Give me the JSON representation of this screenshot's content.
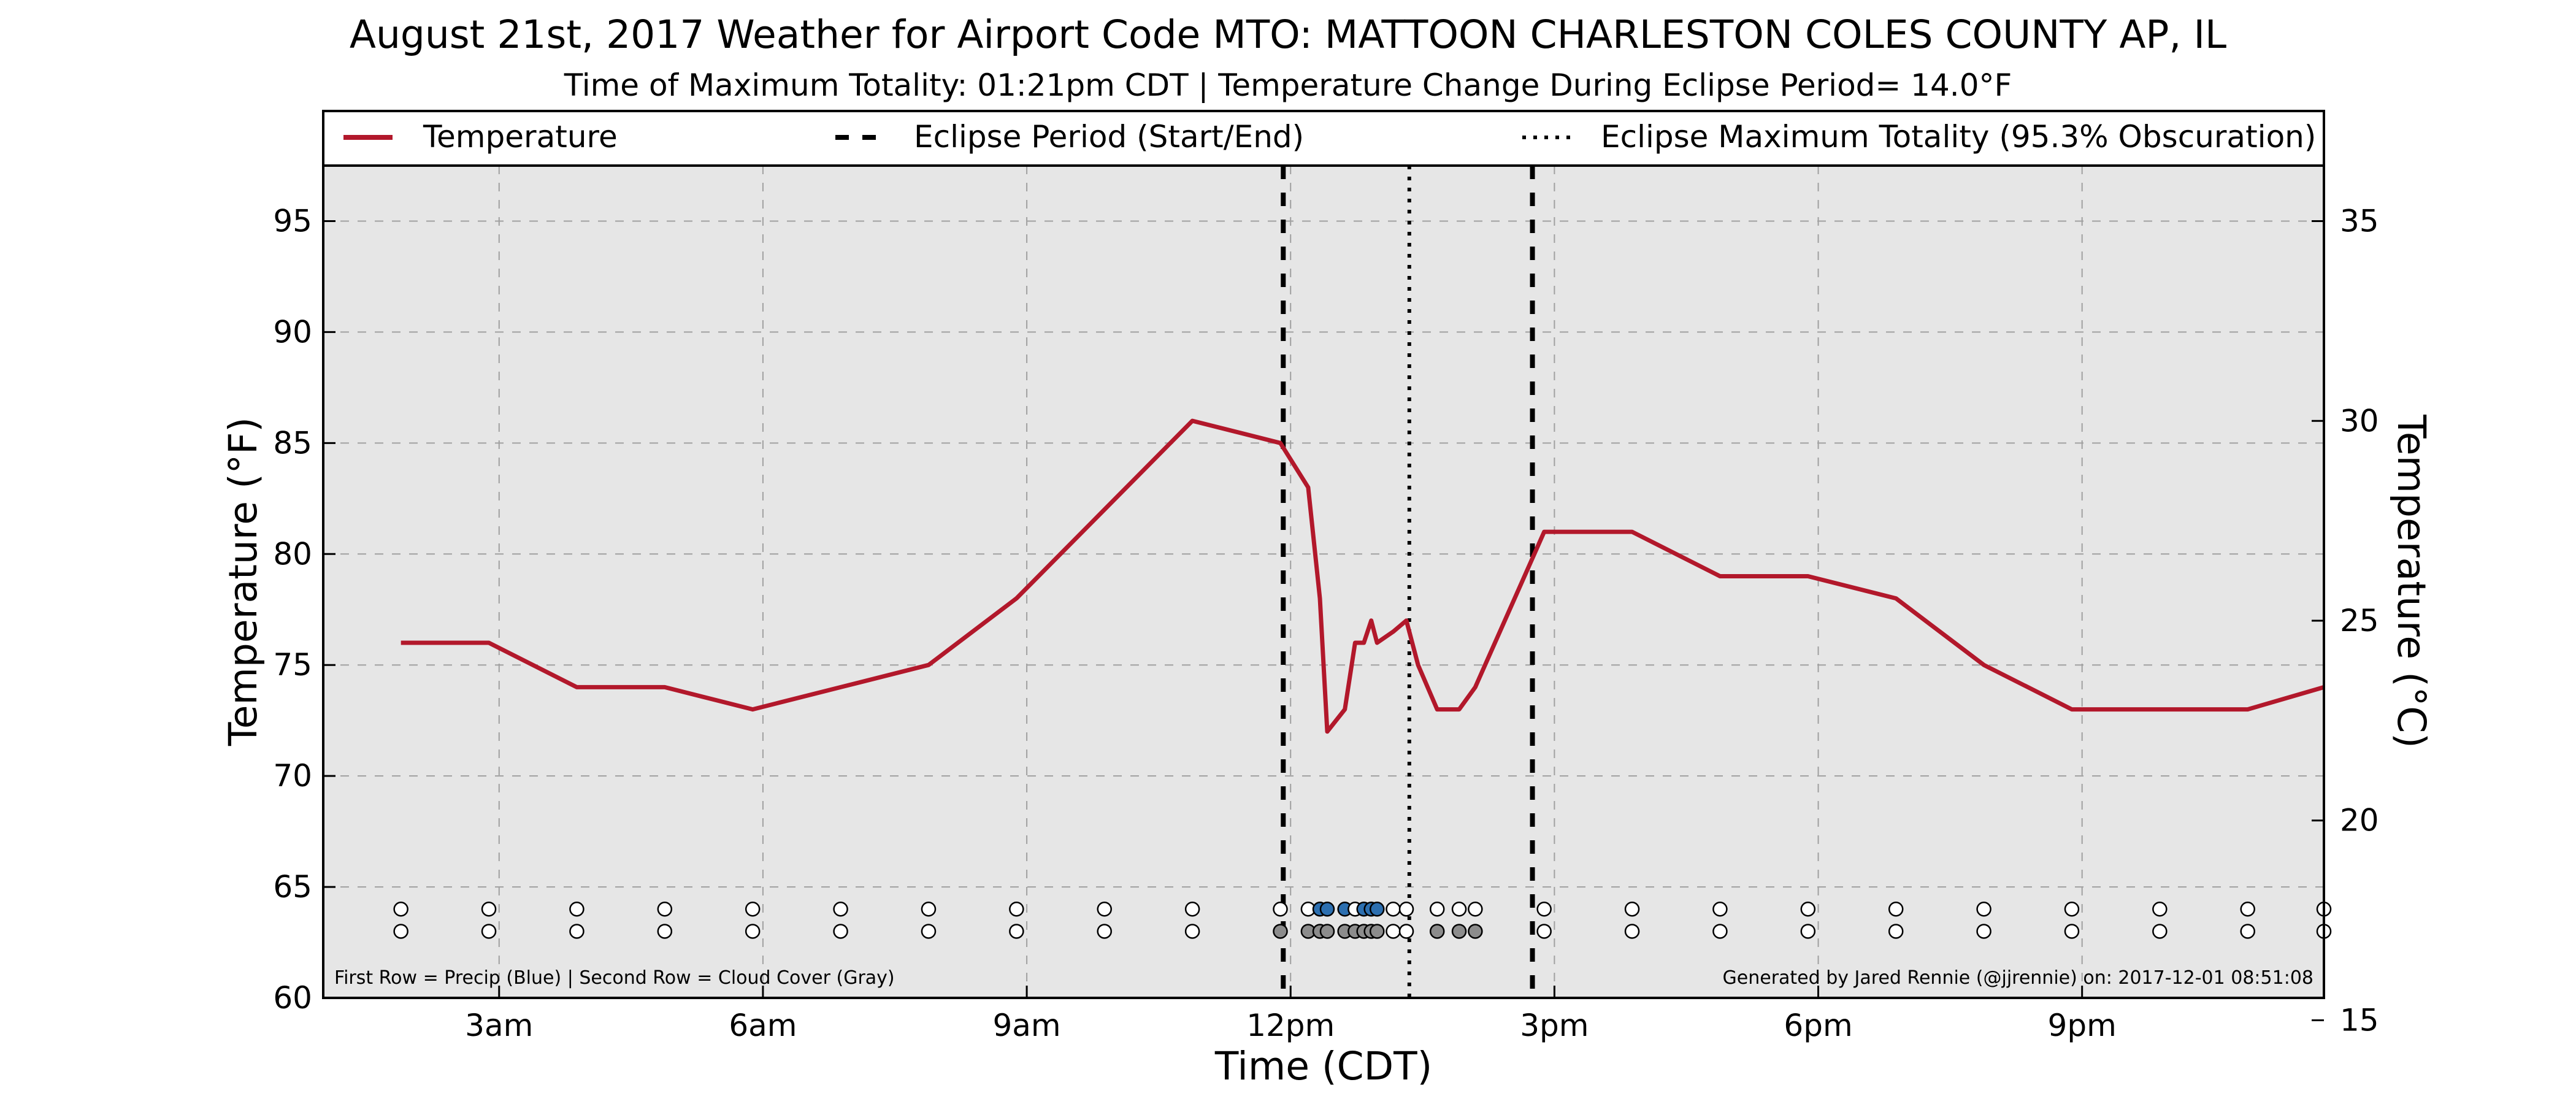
{
  "chart_data": {
    "type": "line",
    "title": "August 21st, 2017 Weather for Airport Code MTO: MATTOON CHARLESTON COLES COUNTY AP, IL",
    "subtitle": "Time of Maximum Totality: 01:21pm CDT | Temperature Change During Eclipse Period= 14.0°F",
    "xlabel": "Time (CDT)",
    "ylabel": "Temperature (°F)",
    "ylabel_right": "Temperature (°C)",
    "xlim": [
      "2017-08-21 01:00",
      "2017-08-21 23:45"
    ],
    "ylim": [
      60,
      97.5
    ],
    "ylim_right": [
      15.56,
      36.39
    ],
    "grid": true,
    "legend_position": "top, above plot",
    "legend": [
      {
        "label": "Temperature",
        "style": "solid",
        "color": "#b2182b"
      },
      {
        "label": "Eclipse Period (Start/End)",
        "style": "dashed",
        "color": "#000000"
      },
      {
        "label": "Eclipse Maximum Totality (95.3% Obscuration)",
        "style": "dotted",
        "color": "#000000"
      }
    ],
    "x_ticks": [
      {
        "time": "2017-08-21 03:00",
        "label": "3am"
      },
      {
        "time": "2017-08-21 06:00",
        "label": "6am"
      },
      {
        "time": "2017-08-21 09:00",
        "label": "9am"
      },
      {
        "time": "2017-08-21 12:00",
        "label": "12pm"
      },
      {
        "time": "2017-08-21 15:00",
        "label": "3pm"
      },
      {
        "time": "2017-08-21 18:00",
        "label": "6pm"
      },
      {
        "time": "2017-08-21 21:00",
        "label": "9pm"
      }
    ],
    "y_ticks": [
      {
        "value": 60,
        "label": "60"
      },
      {
        "value": 65,
        "label": "65"
      },
      {
        "value": 70,
        "label": "70"
      },
      {
        "value": 75,
        "label": "75"
      },
      {
        "value": 80,
        "label": "80"
      },
      {
        "value": 85,
        "label": "85"
      },
      {
        "value": 90,
        "label": "90"
      },
      {
        "value": 95,
        "label": "95"
      }
    ],
    "y_ticks_right": [
      {
        "value": 15,
        "label": "15"
      },
      {
        "value": 20,
        "label": "20"
      },
      {
        "value": 25,
        "label": "25"
      },
      {
        "value": 30,
        "label": "30"
      },
      {
        "value": 35,
        "label": "35"
      }
    ],
    "series": [
      {
        "name": "Temperature",
        "color": "#b2182b",
        "points": [
          {
            "time": "2017-08-21 01:53",
            "value": 76
          },
          {
            "time": "2017-08-21 02:53",
            "value": 76
          },
          {
            "time": "2017-08-21 03:53",
            "value": 74
          },
          {
            "time": "2017-08-21 04:53",
            "value": 74
          },
          {
            "time": "2017-08-21 05:53",
            "value": 73
          },
          {
            "time": "2017-08-21 06:53",
            "value": 74
          },
          {
            "time": "2017-08-21 07:53",
            "value": 75
          },
          {
            "time": "2017-08-21 08:53",
            "value": 78
          },
          {
            "time": "2017-08-21 09:53",
            "value": 82
          },
          {
            "time": "2017-08-21 10:53",
            "value": 86
          },
          {
            "time": "2017-08-21 11:53",
            "value": 85
          },
          {
            "time": "2017-08-21 12:12",
            "value": 83
          },
          {
            "time": "2017-08-21 12:20",
            "value": 78
          },
          {
            "time": "2017-08-21 12:25",
            "value": 72
          },
          {
            "time": "2017-08-21 12:37",
            "value": 73
          },
          {
            "time": "2017-08-21 12:44",
            "value": 76
          },
          {
            "time": "2017-08-21 12:50",
            "value": 76
          },
          {
            "time": "2017-08-21 12:55",
            "value": 77
          },
          {
            "time": "2017-08-21 12:59",
            "value": 76
          },
          {
            "time": "2017-08-21 13:10",
            "value": 76.5
          },
          {
            "time": "2017-08-21 13:19",
            "value": 77
          },
          {
            "time": "2017-08-21 13:27",
            "value": 75
          },
          {
            "time": "2017-08-21 13:40",
            "value": 73
          },
          {
            "time": "2017-08-21 13:55",
            "value": 73
          },
          {
            "time": "2017-08-21 14:06",
            "value": 74
          },
          {
            "time": "2017-08-21 14:53",
            "value": 81
          },
          {
            "time": "2017-08-21 15:53",
            "value": 81
          },
          {
            "time": "2017-08-21 16:53",
            "value": 79
          },
          {
            "time": "2017-08-21 17:53",
            "value": 79
          },
          {
            "time": "2017-08-21 18:53",
            "value": 78
          },
          {
            "time": "2017-08-21 19:53",
            "value": 75
          },
          {
            "time": "2017-08-21 20:53",
            "value": 73
          },
          {
            "time": "2017-08-21 21:53",
            "value": 73
          },
          {
            "time": "2017-08-21 22:53",
            "value": 73
          },
          {
            "time": "2017-08-21 23:45",
            "value": 74
          }
        ]
      }
    ],
    "eclipse": {
      "start": "2017-08-21 11:55",
      "max": "2017-08-21 13:21",
      "end": "2017-08-21 14:45",
      "obscuration": "95.3%"
    },
    "observations": [
      {
        "time": "2017-08-21 01:53",
        "precip": false,
        "cloud": false
      },
      {
        "time": "2017-08-21 02:53",
        "precip": false,
        "cloud": false
      },
      {
        "time": "2017-08-21 03:53",
        "precip": false,
        "cloud": false
      },
      {
        "time": "2017-08-21 04:53",
        "precip": false,
        "cloud": false
      },
      {
        "time": "2017-08-21 05:53",
        "precip": false,
        "cloud": false
      },
      {
        "time": "2017-08-21 06:53",
        "precip": false,
        "cloud": false
      },
      {
        "time": "2017-08-21 07:53",
        "precip": false,
        "cloud": false
      },
      {
        "time": "2017-08-21 08:53",
        "precip": false,
        "cloud": false
      },
      {
        "time": "2017-08-21 09:53",
        "precip": false,
        "cloud": false
      },
      {
        "time": "2017-08-21 10:53",
        "precip": false,
        "cloud": false
      },
      {
        "time": "2017-08-21 11:53",
        "precip": false,
        "cloud": true
      },
      {
        "time": "2017-08-21 12:12",
        "precip": false,
        "cloud": true
      },
      {
        "time": "2017-08-21 12:20",
        "precip": true,
        "cloud": true
      },
      {
        "time": "2017-08-21 12:25",
        "precip": true,
        "cloud": true
      },
      {
        "time": "2017-08-21 12:37",
        "precip": true,
        "cloud": true
      },
      {
        "time": "2017-08-21 12:44",
        "precip": false,
        "cloud": true
      },
      {
        "time": "2017-08-21 12:50",
        "precip": true,
        "cloud": true
      },
      {
        "time": "2017-08-21 12:55",
        "precip": true,
        "cloud": true
      },
      {
        "time": "2017-08-21 12:59",
        "precip": true,
        "cloud": true
      },
      {
        "time": "2017-08-21 13:10",
        "precip": false,
        "cloud": false
      },
      {
        "time": "2017-08-21 13:19",
        "precip": false,
        "cloud": false
      },
      {
        "time": "2017-08-21 13:40",
        "precip": false,
        "cloud": true
      },
      {
        "time": "2017-08-21 13:55",
        "precip": false,
        "cloud": true
      },
      {
        "time": "2017-08-21 14:06",
        "precip": false,
        "cloud": true
      },
      {
        "time": "2017-08-21 14:53",
        "precip": false,
        "cloud": false
      },
      {
        "time": "2017-08-21 15:53",
        "precip": false,
        "cloud": false
      },
      {
        "time": "2017-08-21 16:53",
        "precip": false,
        "cloud": false
      },
      {
        "time": "2017-08-21 17:53",
        "precip": false,
        "cloud": false
      },
      {
        "time": "2017-08-21 18:53",
        "precip": false,
        "cloud": false
      },
      {
        "time": "2017-08-21 19:53",
        "precip": false,
        "cloud": false
      },
      {
        "time": "2017-08-21 20:53",
        "precip": false,
        "cloud": false
      },
      {
        "time": "2017-08-21 21:53",
        "precip": false,
        "cloud": false
      },
      {
        "time": "2017-08-21 22:53",
        "precip": false,
        "cloud": false
      },
      {
        "time": "2017-08-21 23:45",
        "precip": false,
        "cloud": false
      }
    ],
    "colors": {
      "plot_background": "#e6e6e6",
      "temperature": "#b2182b",
      "precip": "#2c6fb0",
      "cloud": "#8c8c8c",
      "empty_marker": "#ffffff"
    },
    "footnote_left": "First Row = Precip (Blue) | Second Row = Cloud Cover (Gray)",
    "footnote_right": "Generated by Jared Rennie (@jjrennie) on: 2017-12-01 08:51:08"
  }
}
